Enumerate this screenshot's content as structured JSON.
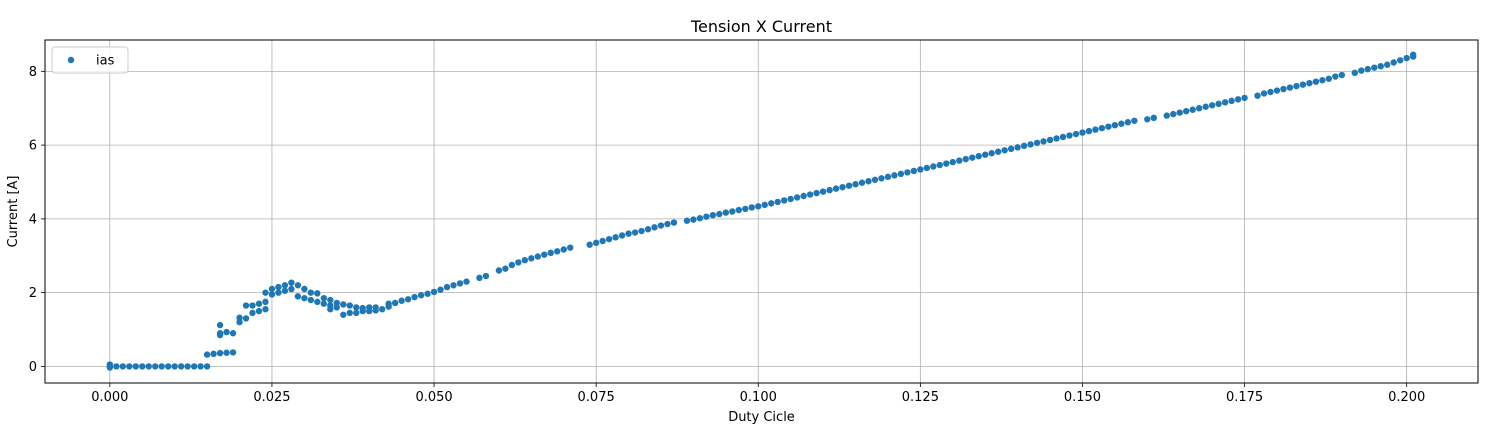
{
  "chart_data": {
    "type": "scatter",
    "title": "Tension X Current",
    "xlabel": "Duty Cicle",
    "ylabel": "Current [A]",
    "xlim": [
      -0.01,
      0.211
    ],
    "ylim": [
      -0.45,
      8.85
    ],
    "xticks": [
      0.0,
      0.025,
      0.05,
      0.075,
      0.1,
      0.125,
      0.15,
      0.175,
      0.2
    ],
    "xtick_labels": [
      "0.000",
      "0.025",
      "0.050",
      "0.075",
      "0.100",
      "0.125",
      "0.150",
      "0.175",
      "0.200"
    ],
    "yticks": [
      0,
      2,
      4,
      6,
      8
    ],
    "ytick_labels": [
      "0",
      "2",
      "4",
      "6",
      "8"
    ],
    "grid": true,
    "legend_position": "top-left",
    "colors": {
      "series": "#1f77b4",
      "grid": "#b0b0b0"
    },
    "series": [
      {
        "name": "ias",
        "marker": "circle",
        "points": [
          [
            0.0,
            0.0
          ],
          [
            0.0,
            0.05
          ],
          [
            0.0,
            -0.03
          ],
          [
            0.001,
            0.0
          ],
          [
            0.002,
            0.0
          ],
          [
            0.003,
            0.0
          ],
          [
            0.004,
            0.0
          ],
          [
            0.005,
            0.0
          ],
          [
            0.006,
            0.0
          ],
          [
            0.007,
            0.0
          ],
          [
            0.008,
            0.0
          ],
          [
            0.009,
            0.0
          ],
          [
            0.01,
            0.0
          ],
          [
            0.011,
            0.0
          ],
          [
            0.012,
            0.0
          ],
          [
            0.013,
            0.0
          ],
          [
            0.014,
            0.0
          ],
          [
            0.015,
            0.0
          ],
          [
            0.015,
            0.32
          ],
          [
            0.016,
            0.34
          ],
          [
            0.017,
            0.36
          ],
          [
            0.018,
            0.37
          ],
          [
            0.019,
            0.38
          ],
          [
            0.017,
            1.12
          ],
          [
            0.017,
            0.9
          ],
          [
            0.018,
            0.93
          ],
          [
            0.019,
            0.9
          ],
          [
            0.017,
            0.85
          ],
          [
            0.02,
            1.2
          ],
          [
            0.02,
            1.32
          ],
          [
            0.021,
            1.3
          ],
          [
            0.021,
            1.65
          ],
          [
            0.022,
            1.45
          ],
          [
            0.022,
            1.65
          ],
          [
            0.023,
            1.5
          ],
          [
            0.023,
            1.7
          ],
          [
            0.024,
            1.55
          ],
          [
            0.024,
            1.75
          ],
          [
            0.024,
            2.0
          ],
          [
            0.025,
            1.95
          ],
          [
            0.025,
            2.1
          ],
          [
            0.026,
            2.0
          ],
          [
            0.026,
            2.15
          ],
          [
            0.027,
            2.05
          ],
          [
            0.027,
            2.2
          ],
          [
            0.028,
            2.1
          ],
          [
            0.028,
            2.27
          ],
          [
            0.029,
            1.9
          ],
          [
            0.029,
            2.2
          ],
          [
            0.03,
            1.85
          ],
          [
            0.03,
            2.1
          ],
          [
            0.031,
            1.8
          ],
          [
            0.031,
            2.0
          ],
          [
            0.032,
            1.75
          ],
          [
            0.032,
            1.98
          ],
          [
            0.033,
            1.7
          ],
          [
            0.033,
            1.85
          ],
          [
            0.034,
            1.65
          ],
          [
            0.034,
            1.8
          ],
          [
            0.034,
            1.55
          ],
          [
            0.035,
            1.6
          ],
          [
            0.035,
            1.72
          ],
          [
            0.036,
            1.4
          ],
          [
            0.036,
            1.68
          ],
          [
            0.037,
            1.45
          ],
          [
            0.037,
            1.65
          ],
          [
            0.038,
            1.45
          ],
          [
            0.038,
            1.6
          ],
          [
            0.039,
            1.5
          ],
          [
            0.039,
            1.58
          ],
          [
            0.04,
            1.5
          ],
          [
            0.04,
            1.6
          ],
          [
            0.041,
            1.52
          ],
          [
            0.041,
            1.6
          ],
          [
            0.042,
            1.55
          ],
          [
            0.043,
            1.62
          ],
          [
            0.043,
            1.7
          ],
          [
            0.044,
            1.72
          ],
          [
            0.045,
            1.78
          ],
          [
            0.046,
            1.82
          ],
          [
            0.047,
            1.88
          ],
          [
            0.048,
            1.93
          ],
          [
            0.049,
            1.97
          ],
          [
            0.05,
            2.02
          ],
          [
            0.051,
            2.08
          ],
          [
            0.052,
            2.15
          ],
          [
            0.053,
            2.2
          ],
          [
            0.054,
            2.25
          ],
          [
            0.055,
            2.3
          ],
          [
            0.057,
            2.4
          ],
          [
            0.058,
            2.45
          ],
          [
            0.06,
            2.6
          ],
          [
            0.061,
            2.65
          ],
          [
            0.062,
            2.75
          ],
          [
            0.063,
            2.82
          ],
          [
            0.064,
            2.88
          ],
          [
            0.065,
            2.93
          ],
          [
            0.066,
            2.98
          ],
          [
            0.067,
            3.03
          ],
          [
            0.068,
            3.08
          ],
          [
            0.069,
            3.12
          ],
          [
            0.07,
            3.17
          ],
          [
            0.071,
            3.22
          ],
          [
            0.074,
            3.3
          ],
          [
            0.075,
            3.35
          ],
          [
            0.076,
            3.4
          ],
          [
            0.077,
            3.45
          ],
          [
            0.078,
            3.5
          ],
          [
            0.079,
            3.55
          ],
          [
            0.08,
            3.6
          ],
          [
            0.081,
            3.63
          ],
          [
            0.082,
            3.67
          ],
          [
            0.083,
            3.72
          ],
          [
            0.084,
            3.77
          ],
          [
            0.085,
            3.82
          ],
          [
            0.086,
            3.86
          ],
          [
            0.087,
            3.9
          ],
          [
            0.089,
            3.95
          ],
          [
            0.09,
            3.98
          ],
          [
            0.091,
            4.02
          ],
          [
            0.092,
            4.06
          ],
          [
            0.093,
            4.1
          ],
          [
            0.094,
            4.13
          ],
          [
            0.095,
            4.17
          ],
          [
            0.096,
            4.2
          ],
          [
            0.097,
            4.24
          ],
          [
            0.098,
            4.27
          ],
          [
            0.099,
            4.31
          ],
          [
            0.1,
            4.34
          ],
          [
            0.101,
            4.38
          ],
          [
            0.102,
            4.42
          ],
          [
            0.103,
            4.46
          ],
          [
            0.104,
            4.5
          ],
          [
            0.105,
            4.54
          ],
          [
            0.106,
            4.58
          ],
          [
            0.107,
            4.62
          ],
          [
            0.108,
            4.66
          ],
          [
            0.109,
            4.7
          ],
          [
            0.11,
            4.74
          ],
          [
            0.111,
            4.78
          ],
          [
            0.112,
            4.82
          ],
          [
            0.113,
            4.86
          ],
          [
            0.114,
            4.9
          ],
          [
            0.115,
            4.94
          ],
          [
            0.116,
            4.98
          ],
          [
            0.117,
            5.02
          ],
          [
            0.118,
            5.06
          ],
          [
            0.119,
            5.1
          ],
          [
            0.12,
            5.14
          ],
          [
            0.121,
            5.18
          ],
          [
            0.122,
            5.22
          ],
          [
            0.123,
            5.26
          ],
          [
            0.124,
            5.3
          ],
          [
            0.125,
            5.34
          ],
          [
            0.126,
            5.38
          ],
          [
            0.127,
            5.42
          ],
          [
            0.128,
            5.46
          ],
          [
            0.129,
            5.5
          ],
          [
            0.13,
            5.54
          ],
          [
            0.131,
            5.58
          ],
          [
            0.132,
            5.62
          ],
          [
            0.133,
            5.66
          ],
          [
            0.134,
            5.7
          ],
          [
            0.135,
            5.74
          ],
          [
            0.136,
            5.78
          ],
          [
            0.137,
            5.82
          ],
          [
            0.138,
            5.86
          ],
          [
            0.139,
            5.9
          ],
          [
            0.14,
            5.94
          ],
          [
            0.141,
            5.98
          ],
          [
            0.142,
            6.02
          ],
          [
            0.143,
            6.06
          ],
          [
            0.144,
            6.1
          ],
          [
            0.145,
            6.14
          ],
          [
            0.146,
            6.18
          ],
          [
            0.147,
            6.22
          ],
          [
            0.148,
            6.26
          ],
          [
            0.149,
            6.3
          ],
          [
            0.15,
            6.34
          ],
          [
            0.151,
            6.38
          ],
          [
            0.152,
            6.42
          ],
          [
            0.153,
            6.46
          ],
          [
            0.154,
            6.5
          ],
          [
            0.155,
            6.54
          ],
          [
            0.156,
            6.58
          ],
          [
            0.157,
            6.62
          ],
          [
            0.158,
            6.66
          ],
          [
            0.16,
            6.7
          ],
          [
            0.161,
            6.74
          ],
          [
            0.163,
            6.8
          ],
          [
            0.164,
            6.84
          ],
          [
            0.165,
            6.88
          ],
          [
            0.166,
            6.92
          ],
          [
            0.167,
            6.96
          ],
          [
            0.168,
            7.0
          ],
          [
            0.169,
            7.04
          ],
          [
            0.17,
            7.08
          ],
          [
            0.171,
            7.12
          ],
          [
            0.172,
            7.16
          ],
          [
            0.173,
            7.2
          ],
          [
            0.174,
            7.24
          ],
          [
            0.175,
            7.28
          ],
          [
            0.177,
            7.34
          ],
          [
            0.178,
            7.4
          ],
          [
            0.179,
            7.44
          ],
          [
            0.18,
            7.48
          ],
          [
            0.181,
            7.52
          ],
          [
            0.182,
            7.56
          ],
          [
            0.183,
            7.6
          ],
          [
            0.184,
            7.64
          ],
          [
            0.185,
            7.68
          ],
          [
            0.186,
            7.72
          ],
          [
            0.187,
            7.76
          ],
          [
            0.188,
            7.8
          ],
          [
            0.189,
            7.86
          ],
          [
            0.19,
            7.9
          ],
          [
            0.192,
            7.96
          ],
          [
            0.193,
            8.02
          ],
          [
            0.194,
            8.06
          ],
          [
            0.195,
            8.1
          ],
          [
            0.196,
            8.14
          ],
          [
            0.197,
            8.18
          ],
          [
            0.198,
            8.24
          ],
          [
            0.199,
            8.3
          ],
          [
            0.2,
            8.36
          ],
          [
            0.201,
            8.4
          ],
          [
            0.201,
            8.45
          ]
        ]
      }
    ]
  }
}
